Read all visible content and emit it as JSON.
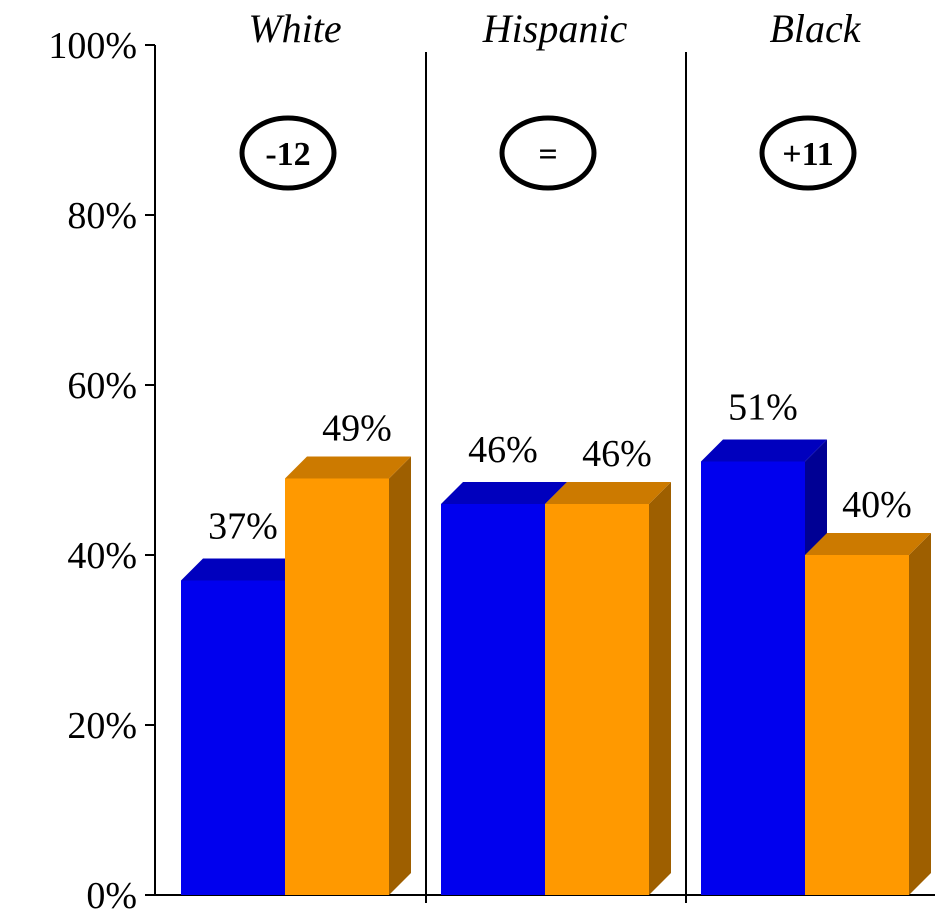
{
  "chart_data": {
    "type": "bar",
    "categories": [
      "White",
      "Hispanic",
      "Black"
    ],
    "series": [
      {
        "values": [
          37,
          46,
          51
        ],
        "color": "#0000EE"
      },
      {
        "values": [
          49,
          46,
          40
        ],
        "color": "#FF9900"
      }
    ],
    "value_labels": [
      [
        "37%",
        "46%",
        "51%"
      ],
      [
        "49%",
        "46%",
        "40%"
      ]
    ],
    "differences": [
      "-12",
      "=",
      "+11"
    ],
    "y_ticks": [
      "0%",
      "20%",
      "40%",
      "60%",
      "80%",
      "100%"
    ],
    "ylim": [
      0,
      100
    ],
    "grid": false,
    "group_separators": true,
    "style": "3d"
  }
}
